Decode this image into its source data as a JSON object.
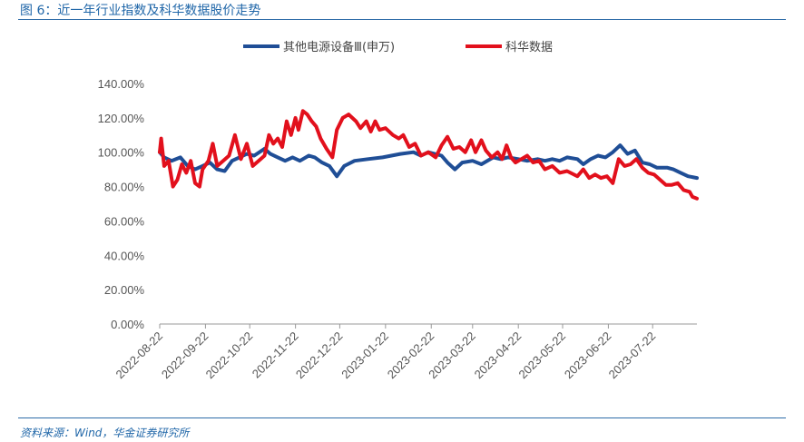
{
  "header": {
    "title": "图 6：近一年行业指数及科华数据股价走势",
    "source": "资料来源：Wind，华金证券研究所"
  },
  "colors": {
    "series_1": "#1f4e96",
    "series_2": "#e2101c",
    "header": "#1f66a8"
  },
  "chart_data": {
    "type": "line",
    "ylim": [
      0,
      140
    ],
    "yticks": [
      "0.00%",
      "20.00%",
      "40.00%",
      "60.00%",
      "80.00%",
      "100.00%",
      "120.00%",
      "140.00%"
    ],
    "xticks": [
      "2022-08-22",
      "2022-09-22",
      "2022-10-22",
      "2022-11-22",
      "2022-12-22",
      "2023-01-22",
      "2023-02-22",
      "2023-03-22",
      "2023-04-22",
      "2023-05-22",
      "2023-06-22",
      "2023-07-22"
    ],
    "x_range": [
      "2022-08-22",
      "2023-08-21"
    ],
    "legend_position": "top",
    "series": [
      {
        "name": "其他电源设备Ⅲ(申万)",
        "points": [
          [
            "2022-08-22",
            100
          ],
          [
            "2022-08-25",
            97
          ],
          [
            "2022-08-30",
            95
          ],
          [
            "2022-09-05",
            97
          ],
          [
            "2022-09-10",
            92
          ],
          [
            "2022-09-15",
            90
          ],
          [
            "2022-09-20",
            92
          ],
          [
            "2022-09-25",
            94
          ],
          [
            "2022-09-30",
            90
          ],
          [
            "2022-10-05",
            89
          ],
          [
            "2022-10-10",
            95
          ],
          [
            "2022-10-15",
            97
          ],
          [
            "2022-10-20",
            99
          ],
          [
            "2022-10-25",
            98
          ],
          [
            "2022-11-01",
            102
          ],
          [
            "2022-11-05",
            99
          ],
          [
            "2022-11-10",
            97
          ],
          [
            "2022-11-15",
            95
          ],
          [
            "2022-11-20",
            97
          ],
          [
            "2022-11-25",
            95
          ],
          [
            "2022-12-01",
            98
          ],
          [
            "2022-12-05",
            97
          ],
          [
            "2022-12-10",
            94
          ],
          [
            "2022-12-15",
            92
          ],
          [
            "2022-12-20",
            86
          ],
          [
            "2022-12-25",
            92
          ],
          [
            "2023-01-01",
            95
          ],
          [
            "2023-01-10",
            96
          ],
          [
            "2023-01-20",
            97
          ],
          [
            "2023-02-01",
            99
          ],
          [
            "2023-02-10",
            100
          ],
          [
            "2023-02-15",
            98
          ],
          [
            "2023-02-20",
            100
          ],
          [
            "2023-03-01",
            98
          ],
          [
            "2023-03-05",
            94
          ],
          [
            "2023-03-10",
            90
          ],
          [
            "2023-03-15",
            94
          ],
          [
            "2023-03-22",
            95
          ],
          [
            "2023-03-28",
            93
          ],
          [
            "2023-04-05",
            97
          ],
          [
            "2023-04-10",
            96
          ],
          [
            "2023-04-15",
            97
          ],
          [
            "2023-04-22",
            96
          ],
          [
            "2023-04-28",
            95
          ],
          [
            "2023-05-05",
            96
          ],
          [
            "2023-05-10",
            95
          ],
          [
            "2023-05-15",
            96
          ],
          [
            "2023-05-20",
            95
          ],
          [
            "2023-05-25",
            97
          ],
          [
            "2023-06-01",
            96
          ],
          [
            "2023-06-05",
            93
          ],
          [
            "2023-06-10",
            96
          ],
          [
            "2023-06-15",
            98
          ],
          [
            "2023-06-20",
            97
          ],
          [
            "2023-06-25",
            100
          ],
          [
            "2023-06-30",
            104
          ],
          [
            "2023-07-05",
            99
          ],
          [
            "2023-07-10",
            101
          ],
          [
            "2023-07-15",
            94
          ],
          [
            "2023-07-20",
            93
          ],
          [
            "2023-07-25",
            91
          ],
          [
            "2023-08-01",
            91
          ],
          [
            "2023-08-05",
            90
          ],
          [
            "2023-08-10",
            88
          ],
          [
            "2023-08-15",
            86
          ],
          [
            "2023-08-21",
            85
          ]
        ]
      },
      {
        "name": "科华数据",
        "points": [
          [
            "2022-08-22",
            100
          ],
          [
            "2022-08-23",
            108
          ],
          [
            "2022-08-25",
            92
          ],
          [
            "2022-08-28",
            95
          ],
          [
            "2022-08-31",
            80
          ],
          [
            "2022-09-03",
            84
          ],
          [
            "2022-09-06",
            93
          ],
          [
            "2022-09-09",
            88
          ],
          [
            "2022-09-12",
            95
          ],
          [
            "2022-09-15",
            82
          ],
          [
            "2022-09-18",
            80
          ],
          [
            "2022-09-20",
            90
          ],
          [
            "2022-09-24",
            95
          ],
          [
            "2022-09-27",
            105
          ],
          [
            "2022-09-30",
            92
          ],
          [
            "2022-10-04",
            95
          ],
          [
            "2022-10-08",
            98
          ],
          [
            "2022-10-12",
            110
          ],
          [
            "2022-10-16",
            96
          ],
          [
            "2022-10-20",
            105
          ],
          [
            "2022-10-24",
            92
          ],
          [
            "2022-10-28",
            95
          ],
          [
            "2022-11-01",
            98
          ],
          [
            "2022-11-04",
            110
          ],
          [
            "2022-11-07",
            105
          ],
          [
            "2022-11-10",
            108
          ],
          [
            "2022-11-13",
            103
          ],
          [
            "2022-11-16",
            118
          ],
          [
            "2022-11-19",
            110
          ],
          [
            "2022-11-22",
            120
          ],
          [
            "2022-11-24",
            113
          ],
          [
            "2022-11-27",
            124
          ],
          [
            "2022-11-30",
            122
          ],
          [
            "2022-12-03",
            118
          ],
          [
            "2022-12-06",
            115
          ],
          [
            "2022-12-09",
            108
          ],
          [
            "2022-12-13",
            102
          ],
          [
            "2022-12-17",
            97
          ],
          [
            "2022-12-20",
            113
          ],
          [
            "2022-12-24",
            120
          ],
          [
            "2022-12-28",
            122
          ],
          [
            "2023-01-02",
            118
          ],
          [
            "2023-01-05",
            114
          ],
          [
            "2023-01-09",
            118
          ],
          [
            "2023-01-12",
            112
          ],
          [
            "2023-01-15",
            118
          ],
          [
            "2023-01-18",
            113
          ],
          [
            "2023-01-22",
            114
          ],
          [
            "2023-01-27",
            110
          ],
          [
            "2023-01-31",
            108
          ],
          [
            "2023-02-03",
            110
          ],
          [
            "2023-02-07",
            103
          ],
          [
            "2023-02-11",
            105
          ],
          [
            "2023-02-15",
            98
          ],
          [
            "2023-02-20",
            100
          ],
          [
            "2023-02-25",
            97
          ],
          [
            "2023-03-01",
            104
          ],
          [
            "2023-03-05",
            109
          ],
          [
            "2023-03-09",
            102
          ],
          [
            "2023-03-13",
            103
          ],
          [
            "2023-03-17",
            100
          ],
          [
            "2023-03-21",
            107
          ],
          [
            "2023-03-24",
            100
          ],
          [
            "2023-03-28",
            107
          ],
          [
            "2023-03-31",
            101
          ],
          [
            "2023-04-04",
            97
          ],
          [
            "2023-04-08",
            100
          ],
          [
            "2023-04-11",
            96
          ],
          [
            "2023-04-14",
            104
          ],
          [
            "2023-04-17",
            97
          ],
          [
            "2023-04-20",
            94
          ],
          [
            "2023-04-24",
            96
          ],
          [
            "2023-04-28",
            98
          ],
          [
            "2023-05-02",
            94
          ],
          [
            "2023-05-06",
            95
          ],
          [
            "2023-05-10",
            90
          ],
          [
            "2023-05-15",
            92
          ],
          [
            "2023-05-20",
            88
          ],
          [
            "2023-05-25",
            89
          ],
          [
            "2023-06-01",
            86
          ],
          [
            "2023-06-05",
            90
          ],
          [
            "2023-06-09",
            85
          ],
          [
            "2023-06-13",
            87
          ],
          [
            "2023-06-17",
            85
          ],
          [
            "2023-06-21",
            86
          ],
          [
            "2023-06-25",
            82
          ],
          [
            "2023-06-29",
            96
          ],
          [
            "2023-07-03",
            92
          ],
          [
            "2023-07-07",
            93
          ],
          [
            "2023-07-11",
            96
          ],
          [
            "2023-07-15",
            91
          ],
          [
            "2023-07-19",
            88
          ],
          [
            "2023-07-23",
            87
          ],
          [
            "2023-07-27",
            84
          ],
          [
            "2023-07-31",
            81
          ],
          [
            "2023-08-04",
            81
          ],
          [
            "2023-08-08",
            82
          ],
          [
            "2023-08-12",
            78
          ],
          [
            "2023-08-16",
            77
          ],
          [
            "2023-08-18",
            74
          ],
          [
            "2023-08-21",
            73
          ]
        ]
      }
    ]
  }
}
